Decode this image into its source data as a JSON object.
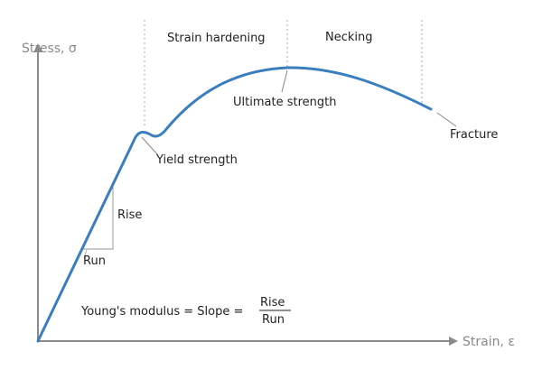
{
  "axes": {
    "y_label": "Stress, σ",
    "x_label": "Strain, ε"
  },
  "regions": {
    "strain_hardening": "Strain hardening",
    "necking": "Necking"
  },
  "annotations": {
    "ultimate_strength": "Ultimate strength",
    "yield_strength": "Yield strength",
    "fracture": "Fracture",
    "rise": "Rise",
    "run": "Run"
  },
  "formula": {
    "prefix": "Young's modulus = Slope =",
    "numerator": "Rise",
    "denominator": "Run"
  },
  "colors": {
    "curve": "#3a7ebf",
    "axis": "#8a8a8a",
    "guide": "#aaaaaa",
    "text": "#222222"
  }
}
